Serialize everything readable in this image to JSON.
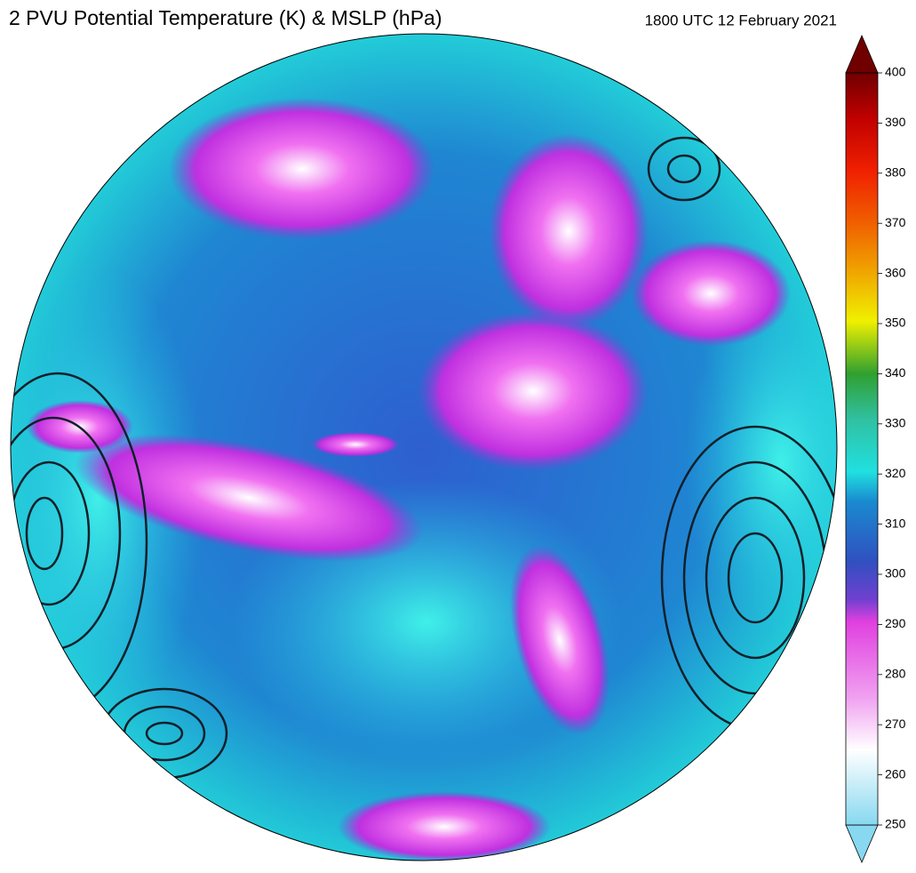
{
  "title": "2 PVU Potential Temperature (K) & MSLP (hPa)",
  "valid_time": "1800 UTC 12 February 2021",
  "colorbar": {
    "lim": [
      250,
      400
    ],
    "ticks": [
      250,
      260,
      270,
      280,
      290,
      300,
      310,
      320,
      330,
      340,
      350,
      360,
      370,
      380,
      390,
      400
    ]
  }
}
